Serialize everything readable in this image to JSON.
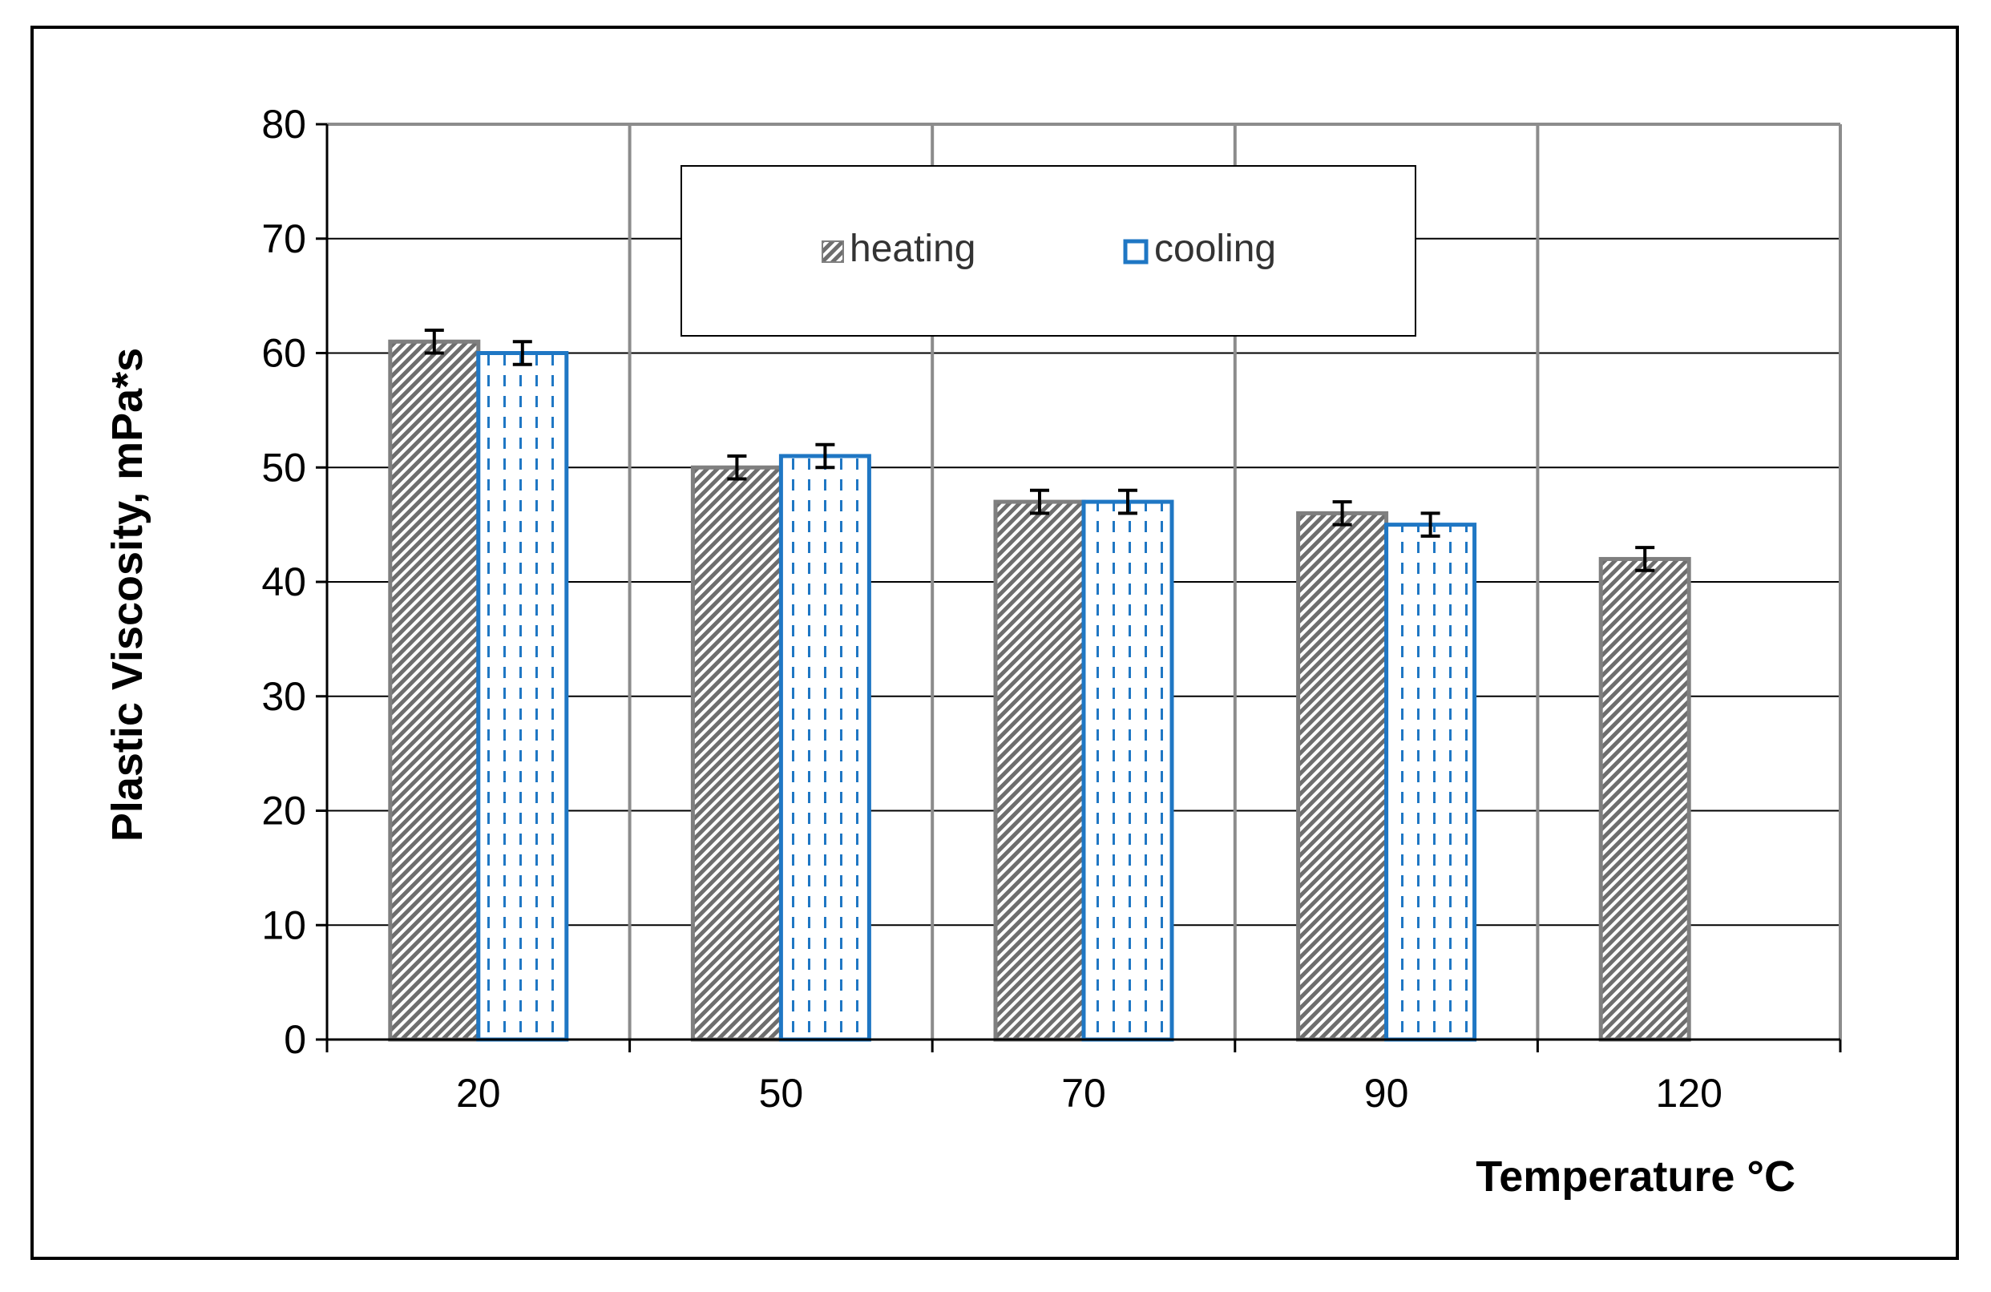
{
  "chart_data": {
    "type": "bar",
    "title": "",
    "xlabel": "Temperature °C",
    "ylabel": "Plastic Viscosity, mPa*s",
    "ylim": [
      0,
      80
    ],
    "yticks": [
      0,
      10,
      20,
      30,
      40,
      50,
      60,
      70,
      80
    ],
    "grid": true,
    "legend_position": "top-center",
    "categories": [
      "20",
      "50",
      "70",
      "90",
      "120"
    ],
    "series": [
      {
        "name": "heating",
        "values": [
          61,
          50,
          47,
          46,
          42
        ],
        "errors": [
          1,
          1,
          1,
          1,
          1
        ],
        "color": "#7f7f7f",
        "pattern": "diagonal-hatch"
      },
      {
        "name": "cooling",
        "values": [
          60,
          51,
          47,
          45,
          null
        ],
        "errors": [
          1,
          1,
          1,
          1,
          null
        ],
        "color": "#1f77c4",
        "pattern": "vertical-dashes"
      }
    ]
  }
}
